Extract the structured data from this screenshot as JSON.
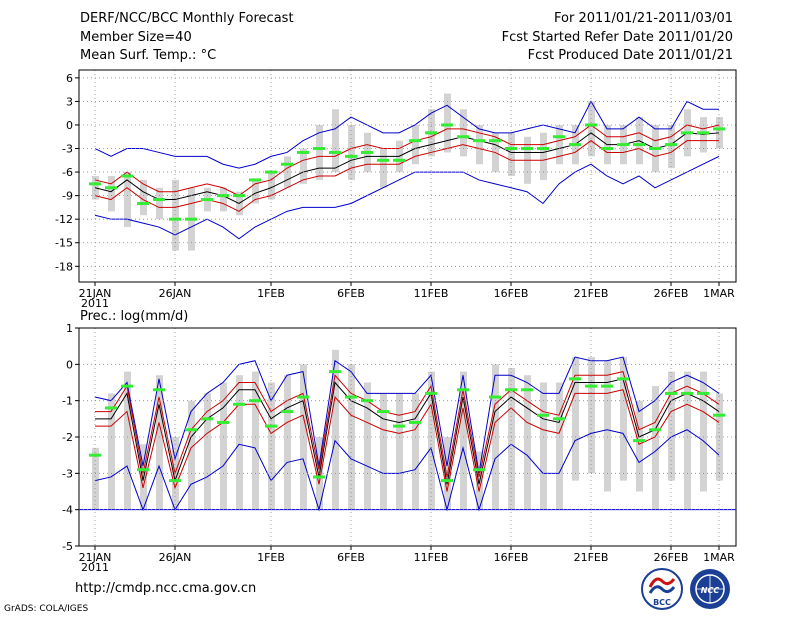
{
  "header": {
    "title": "DERF/NCC/BCC Monthly Forecast",
    "member": "Member Size=40",
    "variable": "Mean Surf. Temp.: °C",
    "period": "For 2011/01/21-2011/03/01",
    "started": "Fcst Started Refer Date 2011/01/20",
    "produced": "Fcst Produced Date 2011/01/21"
  },
  "footer": {
    "url": "http://cmdp.ncc.cma.gov.cn",
    "grads": "GrADS: COLA/IGES"
  },
  "logos": {
    "bcc": "BCC",
    "ncc": "NCC"
  },
  "colors": {
    "ensemble_mean": "#000000",
    "spread": "#cc0000",
    "extremes": "#0000cc",
    "reference": "#33ee33",
    "box": "#d3d3d3"
  },
  "x_ticks": [
    {
      "day": 1,
      "label": "21JAN",
      "sub": "2011"
    },
    {
      "day": 6,
      "label": "26JAN"
    },
    {
      "day": 12,
      "label": "1FEB"
    },
    {
      "day": 17,
      "label": "6FEB"
    },
    {
      "day": 22,
      "label": "11FEB"
    },
    {
      "day": 27,
      "label": "16FEB"
    },
    {
      "day": 32,
      "label": "21FEB"
    },
    {
      "day": 37,
      "label": "26FEB"
    },
    {
      "day": 40,
      "label": "1MAR"
    }
  ],
  "chart_data": [
    {
      "type": "line",
      "title": "Mean Surf. Temp.: °C",
      "ylabel": "°C",
      "ylim": [
        -20,
        7
      ],
      "yticks": [
        6,
        3,
        0,
        -3,
        -6,
        -9,
        -12,
        -15,
        -18
      ],
      "x": [
        1,
        2,
        3,
        4,
        5,
        6,
        7,
        8,
        9,
        10,
        11,
        12,
        13,
        14,
        15,
        16,
        17,
        18,
        19,
        20,
        21,
        22,
        23,
        24,
        25,
        26,
        27,
        28,
        29,
        30,
        31,
        32,
        33,
        34,
        35,
        36,
        37,
        38,
        39,
        40
      ],
      "series": [
        {
          "name": "ensemble mean",
          "values": [
            -8,
            -8.5,
            -7,
            -8.5,
            -9.5,
            -9.5,
            -9,
            -8.5,
            -9,
            -10,
            -8.7,
            -8,
            -7,
            -6,
            -5.5,
            -5.5,
            -4.5,
            -4,
            -4,
            -4,
            -3,
            -2.5,
            -2,
            -1.5,
            -2,
            -2.5,
            -3.5,
            -3.5,
            -3.5,
            -3,
            -2.5,
            -1,
            -2.5,
            -2.5,
            -2,
            -3,
            -2.5,
            -1,
            -1.2,
            -1
          ],
          "values_upper": [
            -7,
            -7.5,
            -6,
            -7.5,
            -8.5,
            -8.5,
            -8,
            -7.5,
            -8,
            -9,
            -7.5,
            -7,
            -5.5,
            -4.5,
            -4,
            -4,
            -3,
            -2.5,
            -3,
            -3,
            -2,
            -1.5,
            -0.5,
            -0.5,
            -1,
            -1.5,
            -2.5,
            -2.5,
            -2.5,
            -2,
            -1.5,
            0,
            -1.5,
            -1.5,
            -1,
            -2,
            -1.5,
            0,
            -0.5,
            0
          ],
          "values_lower": [
            -9,
            -9.5,
            -8,
            -9.5,
            -10.5,
            -10.5,
            -10,
            -9.5,
            -10,
            -11,
            -9.5,
            -9,
            -8,
            -7,
            -6.5,
            -6.5,
            -5.5,
            -5,
            -5,
            -5,
            -4,
            -3.5,
            -3,
            -2.5,
            -3,
            -3.5,
            -4.5,
            -4.5,
            -4.5,
            -4,
            -3.5,
            -2,
            -3.5,
            -3.5,
            -3,
            -4,
            -3.5,
            -2,
            -2,
            -2
          ]
        },
        {
          "name": "maximum",
          "values": [
            -3,
            -4,
            -3,
            -3,
            -3.5,
            -4,
            -4,
            -4,
            -5,
            -5.5,
            -5,
            -4,
            -3.5,
            -2,
            -1,
            -0.5,
            1,
            0,
            -1,
            -1,
            0,
            1.5,
            2.5,
            1,
            -0.5,
            -1,
            -1,
            -0.5,
            0,
            -0.5,
            -1,
            3,
            -0.5,
            -0.5,
            1,
            -0.5,
            -0.5,
            3,
            2,
            2
          ]
        },
        {
          "name": "minimum",
          "values": [
            -11.5,
            -12,
            -12,
            -12.5,
            -13,
            -14,
            -13,
            -12,
            -13,
            -14.5,
            -13,
            -12,
            -11,
            -10.5,
            -10.5,
            -10.5,
            -10,
            -9,
            -8,
            -7,
            -6,
            -6,
            -6,
            -6,
            -7,
            -7.5,
            -8,
            -8.5,
            -10,
            -7.5,
            -6,
            -5,
            -6.5,
            -7.5,
            -6.5,
            -8,
            -7,
            -6,
            -5,
            -4
          ]
        },
        {
          "name": "reference",
          "values": [
            -7.5,
            -8,
            -6.5,
            -10,
            -9.5,
            -12,
            -12,
            -9.5,
            -9,
            -9,
            -7,
            -6,
            -5,
            -3.5,
            -3,
            -3.5,
            -4,
            -3.5,
            -4.5,
            -4.5,
            -2,
            -1,
            0,
            -1.5,
            -2,
            -2,
            -3,
            -3,
            -3,
            -1.5,
            -2.5,
            0,
            -3,
            -2.5,
            -2.5,
            -3,
            -2.5,
            -1,
            -1,
            -0.5
          ]
        }
      ],
      "boxes": [
        {
          "x": 1,
          "hi": -6.5,
          "lo": -9.5
        },
        {
          "x": 2,
          "hi": -6.5,
          "lo": -11
        },
        {
          "x": 3,
          "hi": -6,
          "lo": -13
        },
        {
          "x": 4,
          "hi": -7,
          "lo": -11.5
        },
        {
          "x": 5,
          "hi": -8,
          "lo": -12
        },
        {
          "x": 6,
          "hi": -7,
          "lo": -16
        },
        {
          "x": 7,
          "hi": -8,
          "lo": -16
        },
        {
          "x": 8,
          "hi": -8,
          "lo": -11
        },
        {
          "x": 9,
          "hi": -8,
          "lo": -11
        },
        {
          "x": 10,
          "hi": -8.5,
          "lo": -11.5
        },
        {
          "x": 11,
          "hi": -7,
          "lo": -10
        },
        {
          "x": 12,
          "hi": -6,
          "lo": -9.5
        },
        {
          "x": 13,
          "hi": -4,
          "lo": -8
        },
        {
          "x": 14,
          "hi": -3,
          "lo": -7.5
        },
        {
          "x": 15,
          "hi": 0,
          "lo": -7
        },
        {
          "x": 16,
          "hi": 2,
          "lo": -6
        },
        {
          "x": 17,
          "hi": 0,
          "lo": -7
        },
        {
          "x": 18,
          "hi": -1,
          "lo": -6
        },
        {
          "x": 19,
          "hi": -3,
          "lo": -8
        },
        {
          "x": 20,
          "hi": -2,
          "lo": -6
        },
        {
          "x": 21,
          "hi": 0,
          "lo": -5
        },
        {
          "x": 22,
          "hi": 2,
          "lo": -4
        },
        {
          "x": 23,
          "hi": 4,
          "lo": -3.5
        },
        {
          "x": 24,
          "hi": 2,
          "lo": -4
        },
        {
          "x": 25,
          "hi": 0,
          "lo": -5
        },
        {
          "x": 26,
          "hi": -1,
          "lo": -6
        },
        {
          "x": 27,
          "hi": -1,
          "lo": -6.5
        },
        {
          "x": 28,
          "hi": -1.5,
          "lo": -7.5
        },
        {
          "x": 29,
          "hi": -1,
          "lo": -7
        },
        {
          "x": 30,
          "hi": 0,
          "lo": -5
        },
        {
          "x": 31,
          "hi": 0,
          "lo": -5
        },
        {
          "x": 32,
          "hi": 3,
          "lo": -4
        },
        {
          "x": 33,
          "hi": 0,
          "lo": -5
        },
        {
          "x": 34,
          "hi": 0,
          "lo": -5
        },
        {
          "x": 35,
          "hi": 1,
          "lo": -5
        },
        {
          "x": 36,
          "hi": 0,
          "lo": -6
        },
        {
          "x": 37,
          "hi": 0,
          "lo": -5.5
        },
        {
          "x": 38,
          "hi": 2,
          "lo": -4
        },
        {
          "x": 39,
          "hi": 1,
          "lo": -3.5
        },
        {
          "x": 40,
          "hi": 1,
          "lo": -3
        }
      ]
    },
    {
      "type": "line",
      "title": "Prec.: log(mm/d)",
      "ylabel": "log(mm/d)",
      "ylim": [
        -5,
        1
      ],
      "yticks": [
        1,
        0,
        -1,
        -2,
        -3,
        -4,
        -5
      ],
      "x": [
        1,
        2,
        3,
        4,
        5,
        6,
        7,
        8,
        9,
        10,
        11,
        12,
        13,
        14,
        15,
        16,
        17,
        18,
        19,
        20,
        21,
        22,
        23,
        24,
        25,
        26,
        27,
        28,
        29,
        30,
        31,
        32,
        33,
        34,
        35,
        36,
        37,
        38,
        39,
        40
      ],
      "series": [
        {
          "name": "ensemble mean",
          "values": [
            -1.5,
            -1.5,
            -0.8,
            -3.2,
            -1.1,
            -3.2,
            -2,
            -1.5,
            -1.2,
            -0.7,
            -0.7,
            -1.5,
            -1.2,
            -1,
            -3.1,
            -0.5,
            -1,
            -1.2,
            -1.5,
            -1.6,
            -1.5,
            -0.8,
            -3.3,
            -0.9,
            -3.3,
            -1.3,
            -0.9,
            -1.2,
            -1.5,
            -1.6,
            -0.5,
            -0.5,
            -0.5,
            -0.4,
            -2,
            -1.8,
            -1,
            -0.8,
            -1,
            -1.3
          ],
          "values_upper": [
            -1.3,
            -1.3,
            -0.6,
            -3,
            -0.9,
            -3,
            -1.8,
            -1.3,
            -1,
            -0.5,
            -0.5,
            -1.3,
            -1,
            -0.8,
            -2.9,
            -0.3,
            -0.8,
            -1,
            -1.3,
            -1.4,
            -1.3,
            -0.6,
            -3.1,
            -0.7,
            -3.1,
            -1.1,
            -0.7,
            -1,
            -1.3,
            -1.4,
            -0.3,
            -0.3,
            -0.3,
            -0.2,
            -1.8,
            -1.6,
            -0.8,
            -0.6,
            -0.8,
            -1.1
          ],
          "values_lower": [
            -1.7,
            -1.7,
            -1.3,
            -3.4,
            -1.6,
            -3.4,
            -2.3,
            -1.9,
            -1.6,
            -1.1,
            -1.1,
            -1.9,
            -1.6,
            -1.4,
            -3.3,
            -0.9,
            -1.4,
            -1.6,
            -1.8,
            -1.9,
            -1.8,
            -1.1,
            -3.5,
            -1.2,
            -3.5,
            -1.6,
            -1.2,
            -1.6,
            -1.8,
            -1.9,
            -0.8,
            -0.8,
            -0.8,
            -0.7,
            -2.2,
            -2,
            -1.3,
            -1.1,
            -1.3,
            -1.6
          ]
        },
        {
          "name": "maximum",
          "values": [
            -0.9,
            -1,
            -0.5,
            -2.8,
            -0.4,
            -2.6,
            -1.3,
            -0.8,
            -0.5,
            0,
            0.1,
            -1,
            -0.3,
            -0.2,
            -2.8,
            0.1,
            -0.2,
            -0.8,
            -0.8,
            -0.8,
            -0.8,
            -0.3,
            -2.8,
            -0.3,
            -3,
            -0.3,
            -0.3,
            -0.5,
            -0.8,
            -0.8,
            0.2,
            0.1,
            0.1,
            0.2,
            -1.3,
            -1,
            -0.5,
            -0.3,
            -0.5,
            -0.8
          ]
        },
        {
          "name": "minimum",
          "values": [
            -3.2,
            -3.1,
            -2.8,
            -4,
            -2.8,
            -4,
            -3.3,
            -3.1,
            -2.8,
            -2.2,
            -2.3,
            -3.2,
            -2.7,
            -2.6,
            -4,
            -2.1,
            -2.6,
            -2.8,
            -3,
            -3,
            -2.9,
            -2.3,
            -4,
            -2.3,
            -4,
            -2.6,
            -2.2,
            -2.5,
            -3,
            -3,
            -2.1,
            -1.9,
            -1.8,
            -1.9,
            -2.7,
            -2.4,
            -2,
            -1.8,
            -2.1,
            -2.5
          ]
        },
        {
          "name": "reference",
          "values": [
            -2.5,
            -1.2,
            -0.6,
            -2.9,
            -0.7,
            -3.2,
            -1.8,
            -1.5,
            -1.6,
            -1.1,
            -1,
            -1.7,
            -1.3,
            -0.9,
            -3.1,
            -0.2,
            -0.9,
            -1,
            -1.3,
            -1.7,
            -1.6,
            -0.8,
            -3.2,
            -0.7,
            -2.9,
            -0.9,
            -0.7,
            -0.7,
            -1.4,
            -1.5,
            -0.4,
            -0.6,
            -0.6,
            -0.4,
            -2.1,
            -1.8,
            -0.8,
            -0.8,
            -0.8,
            -1.4
          ]
        }
      ],
      "baseline": -4,
      "boxes": [
        {
          "x": 1,
          "hi": -2.3,
          "lo": -4
        },
        {
          "x": 2,
          "hi": -0.8,
          "lo": -4
        },
        {
          "x": 3,
          "hi": -0.2,
          "lo": -4
        },
        {
          "x": 4,
          "hi": -2.2,
          "lo": -4
        },
        {
          "x": 5,
          "hi": -0.3,
          "lo": -4
        },
        {
          "x": 6,
          "hi": -2,
          "lo": -4
        },
        {
          "x": 7,
          "hi": -1,
          "lo": -4
        },
        {
          "x": 8,
          "hi": -0.8,
          "lo": -4
        },
        {
          "x": 9,
          "hi": -0.5,
          "lo": -4
        },
        {
          "x": 10,
          "hi": -0.3,
          "lo": -4
        },
        {
          "x": 11,
          "hi": -0.2,
          "lo": -4
        },
        {
          "x": 12,
          "hi": -0.5,
          "lo": -4
        },
        {
          "x": 13,
          "hi": -0.3,
          "lo": -4
        },
        {
          "x": 14,
          "hi": 0,
          "lo": -4
        },
        {
          "x": 15,
          "hi": -2,
          "lo": -4
        },
        {
          "x": 16,
          "hi": 0.4,
          "lo": -4
        },
        {
          "x": 17,
          "hi": 0,
          "lo": -4
        },
        {
          "x": 18,
          "hi": -0.5,
          "lo": -4
        },
        {
          "x": 19,
          "hi": -0.8,
          "lo": -4
        },
        {
          "x": 20,
          "hi": -0.8,
          "lo": -4
        },
        {
          "x": 21,
          "hi": -0.8,
          "lo": -4
        },
        {
          "x": 22,
          "hi": -0.2,
          "lo": -4
        },
        {
          "x": 23,
          "hi": -2,
          "lo": -4
        },
        {
          "x": 24,
          "hi": -0.2,
          "lo": -4
        },
        {
          "x": 25,
          "hi": -2.4,
          "lo": -4
        },
        {
          "x": 26,
          "hi": 0,
          "lo": -4
        },
        {
          "x": 27,
          "hi": -0.1,
          "lo": -4
        },
        {
          "x": 28,
          "hi": -0.3,
          "lo": -4
        },
        {
          "x": 29,
          "hi": -0.5,
          "lo": -4
        },
        {
          "x": 30,
          "hi": -0.5,
          "lo": -4
        },
        {
          "x": 31,
          "hi": 0.2,
          "lo": -3.2
        },
        {
          "x": 32,
          "hi": 0.2,
          "lo": -3
        },
        {
          "x": 33,
          "hi": 0.1,
          "lo": -3.5
        },
        {
          "x": 34,
          "hi": 0.2,
          "lo": -3.2
        },
        {
          "x": 35,
          "hi": -1,
          "lo": -3.5
        },
        {
          "x": 36,
          "hi": -0.6,
          "lo": -4
        },
        {
          "x": 37,
          "hi": -0.2,
          "lo": -3.2
        },
        {
          "x": 38,
          "hi": -0.2,
          "lo": -4
        },
        {
          "x": 39,
          "hi": -0.2,
          "lo": -3.5
        },
        {
          "x": 40,
          "hi": -0.8,
          "lo": -3.2
        }
      ]
    }
  ]
}
